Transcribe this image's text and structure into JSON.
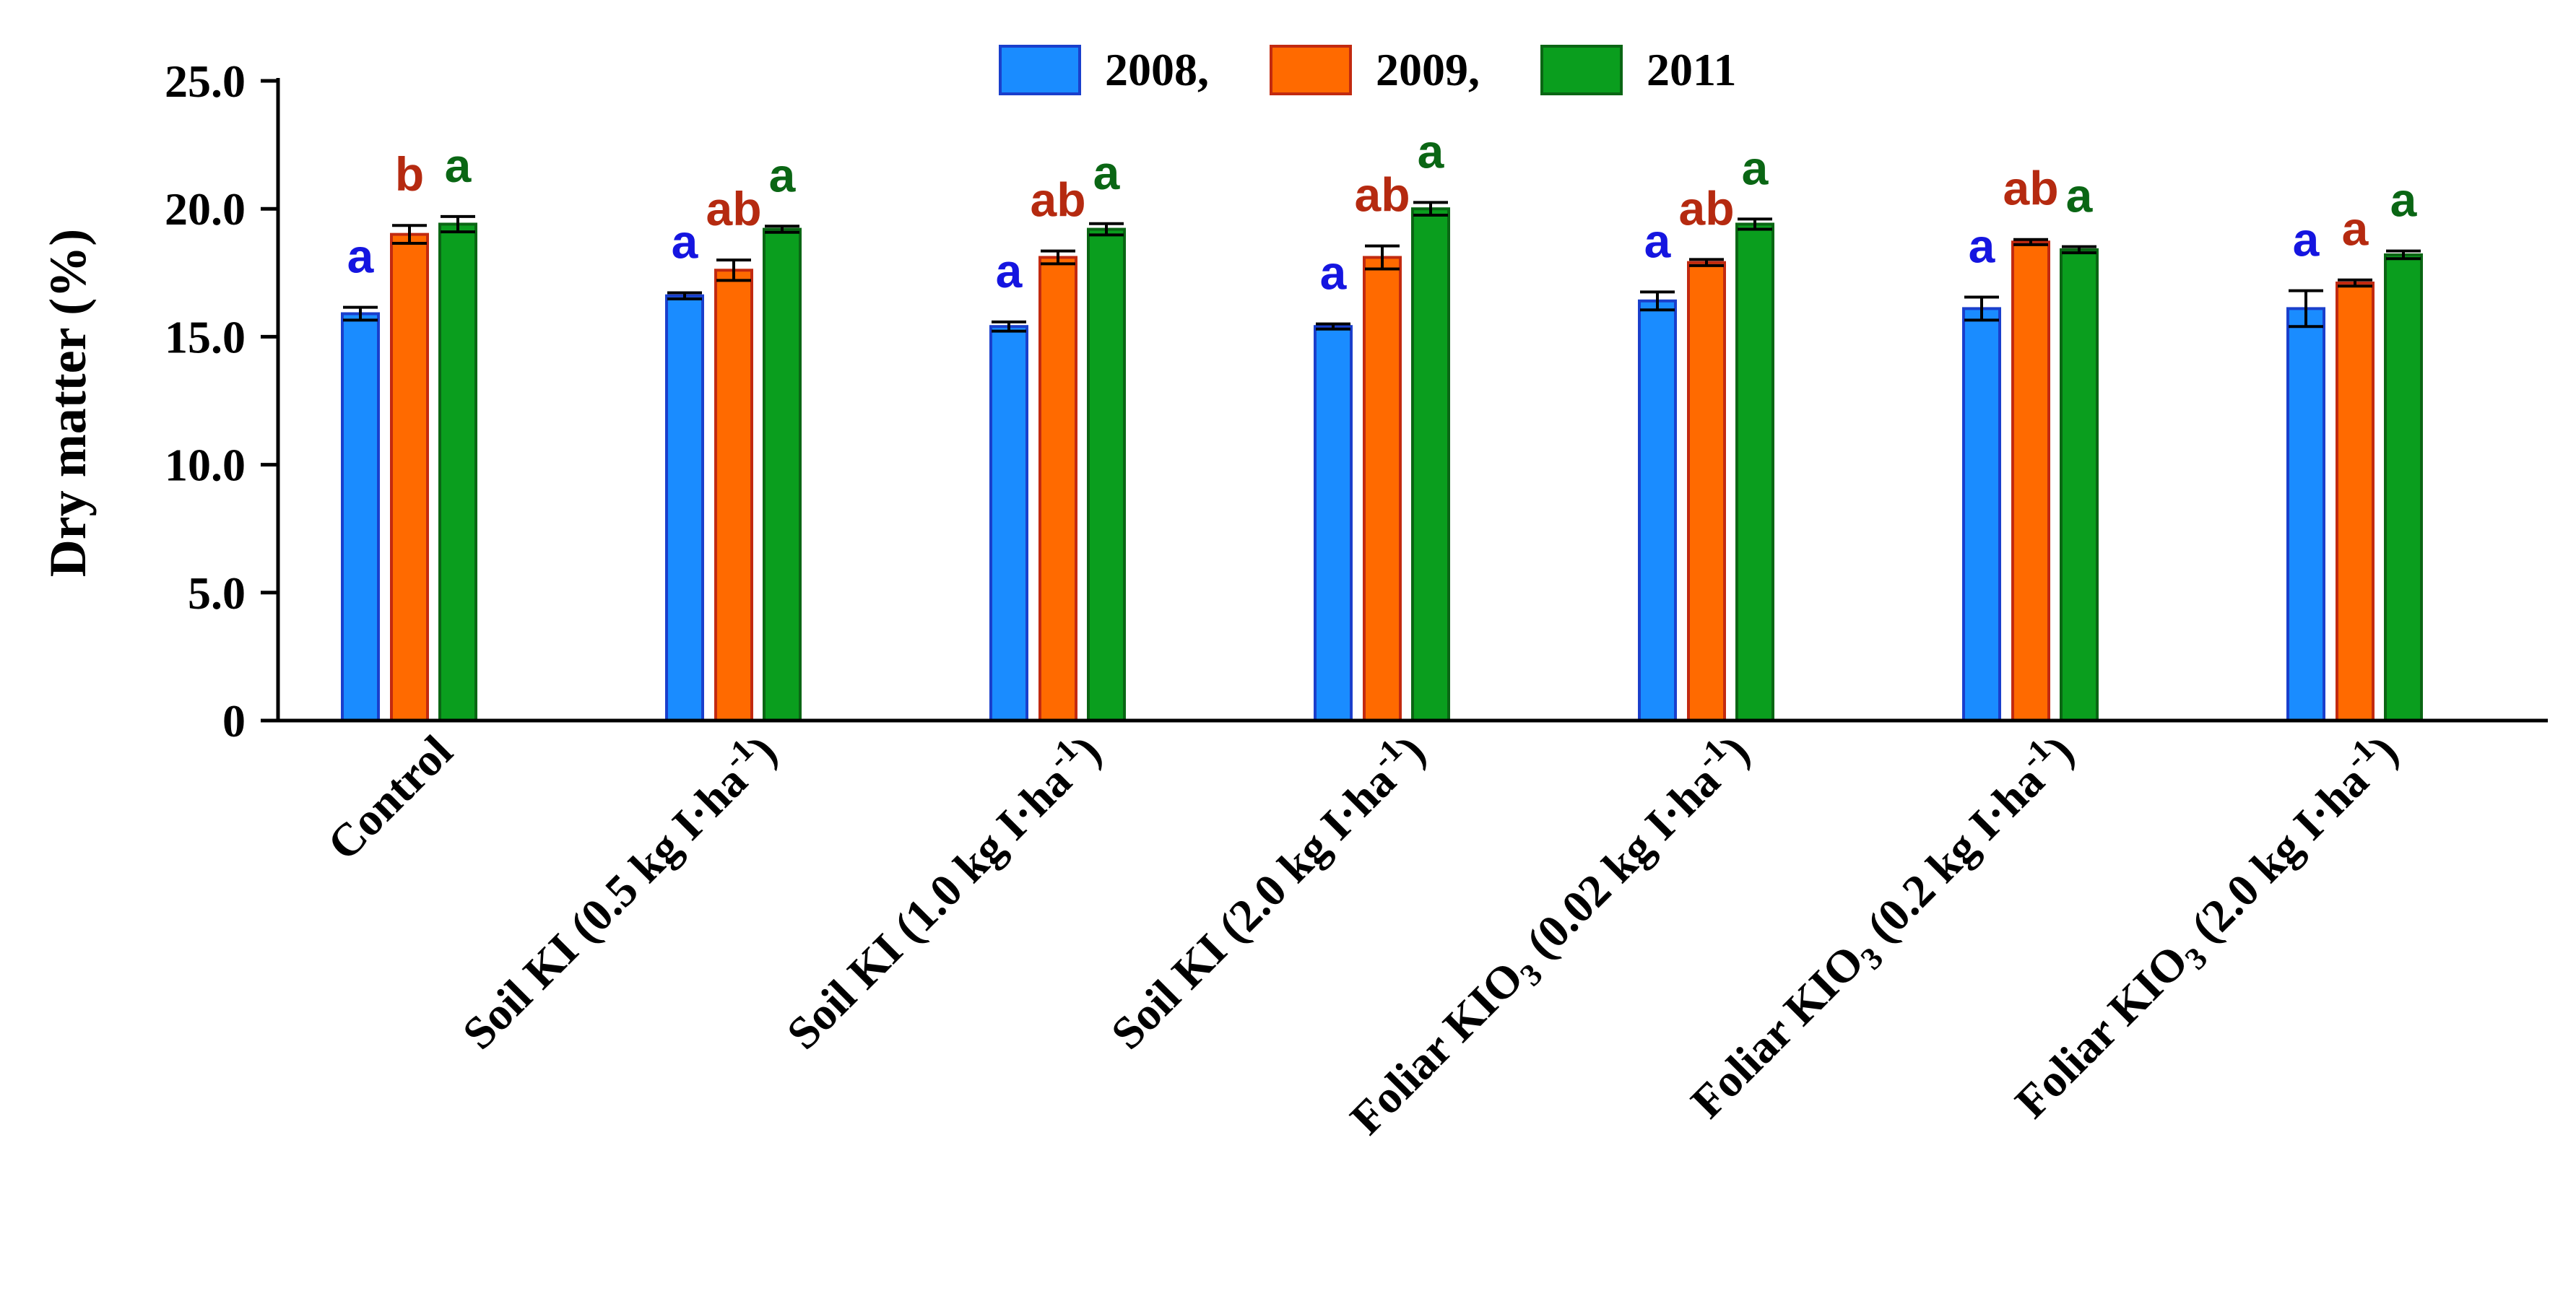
{
  "chart_data": {
    "type": "bar",
    "ylabel": "Dry matter (%)",
    "ylim": [
      0,
      25
    ],
    "y_ticks": [
      "0",
      "5.0",
      "10.0",
      "15.0",
      "20.0",
      "25.0"
    ],
    "legend_position": "top-center",
    "categories": [
      {
        "pre": "Control",
        "sub": "",
        "post": "",
        "sup": ""
      },
      {
        "pre": "Soil KI (0.5 kg I·ha",
        "sub": "",
        "post": ")",
        "sup": "-1"
      },
      {
        "pre": "Soil KI (1.0 kg I·ha",
        "sub": "",
        "post": ")",
        "sup": "-1"
      },
      {
        "pre": "Soil KI (2.0 kg I·ha",
        "sub": "",
        "post": ")",
        "sup": "-1"
      },
      {
        "pre": "Foliar KIO",
        "sub": "3",
        "post": " (0.02 kg I·ha",
        "sup": "-1",
        "end": ")"
      },
      {
        "pre": "Foliar KIO",
        "sub": "3",
        "post": " (0.2 kg I·ha",
        "sup": "-1",
        "end": ")"
      },
      {
        "pre": "Foliar KIO",
        "sub": "3",
        "post": " (2.0 kg I·ha",
        "sup": "-1",
        "end": ")"
      }
    ],
    "series": [
      {
        "name": "2008,",
        "color": "#1a8cff",
        "stroke": "#1a3fcc",
        "letter_color": "#1515e0",
        "values": [
          15.9,
          16.6,
          15.4,
          15.4,
          16.4,
          16.1,
          16.1
        ],
        "errors": [
          0.25,
          0.12,
          0.18,
          0.1,
          0.35,
          0.45,
          0.7
        ],
        "letters": [
          "a",
          "a",
          "a",
          "a",
          "a",
          "a",
          "a"
        ]
      },
      {
        "name": "2009,",
        "color": "#ff6a00",
        "stroke": "#c22a10",
        "letter_color": "#b52a10",
        "values": [
          19.0,
          17.6,
          18.1,
          18.1,
          17.9,
          18.7,
          17.1
        ],
        "errors": [
          0.35,
          0.4,
          0.25,
          0.45,
          0.12,
          0.1,
          0.12
        ],
        "letters": [
          "b",
          "ab",
          "ab",
          "ab",
          "ab",
          "ab",
          "a"
        ]
      },
      {
        "name": "2011",
        "color": "#0a9e1e",
        "stroke": "#0a6614",
        "letter_color": "#0a6614",
        "values": [
          19.4,
          19.2,
          19.2,
          20.0,
          19.4,
          18.4,
          18.2
        ],
        "errors": [
          0.3,
          0.12,
          0.22,
          0.25,
          0.2,
          0.12,
          0.15
        ],
        "letters": [
          "a",
          "a",
          "a",
          "a",
          "a",
          "a",
          "a"
        ]
      }
    ]
  }
}
